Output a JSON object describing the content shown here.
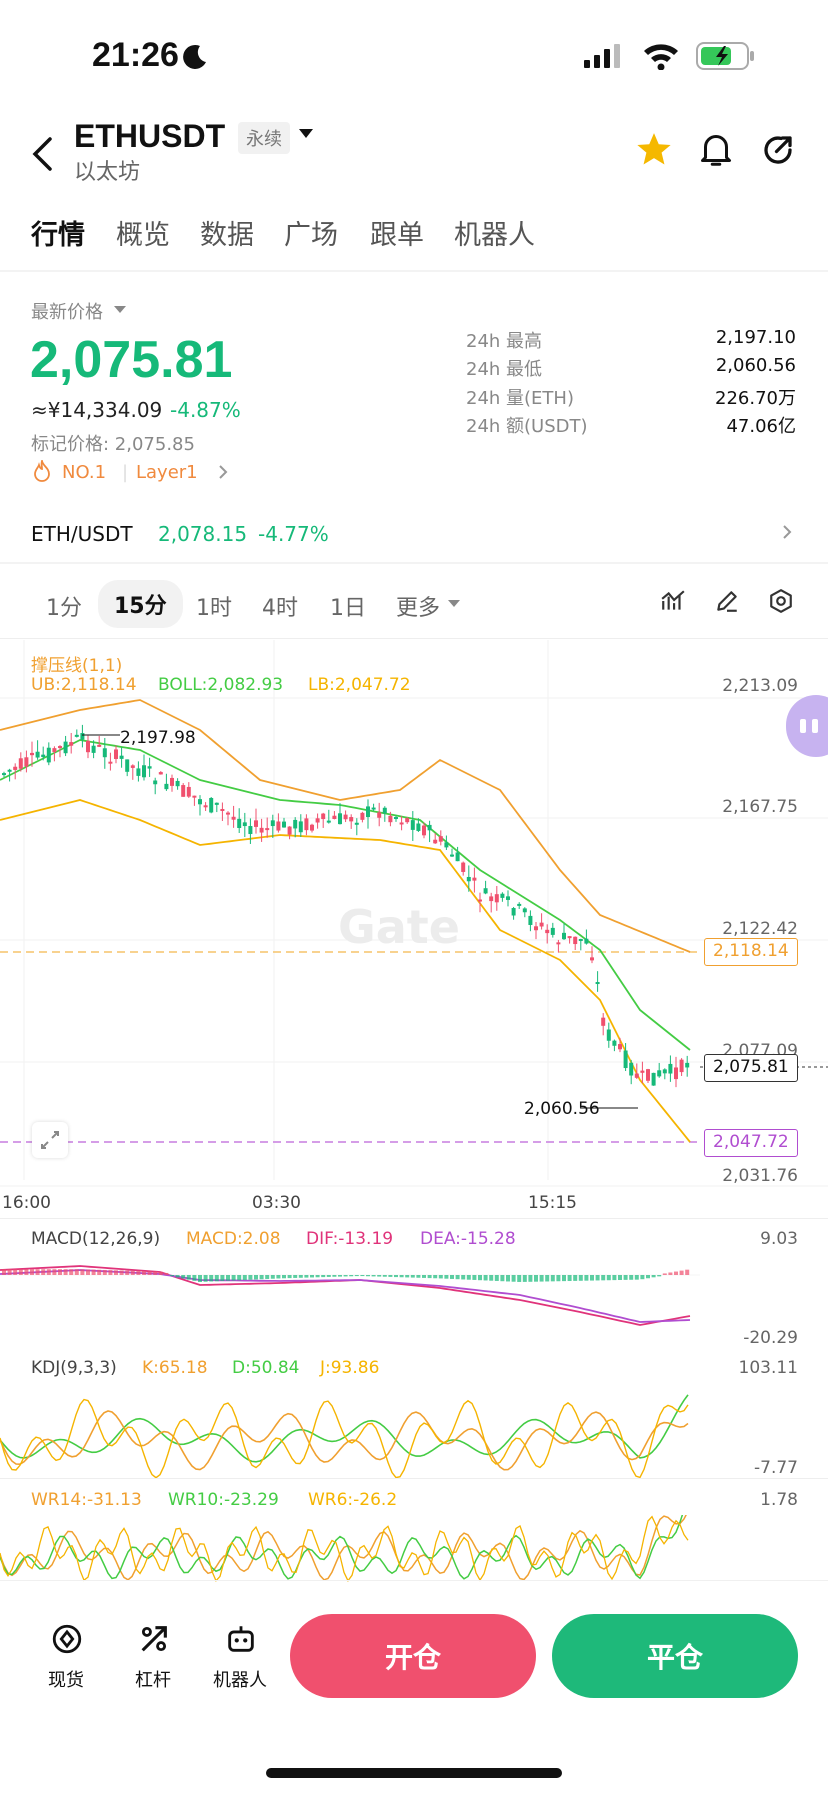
{
  "status_bar": {
    "time": "21:26"
  },
  "header": {
    "symbol": "ETHUSDT",
    "contract_type": "永续",
    "name": "以太坊"
  },
  "tabs": [
    "行情",
    "概览",
    "数据",
    "广场",
    "跟单",
    "机器人"
  ],
  "market": {
    "latest_price_label": "最新价格",
    "price": "2,075.81",
    "cny_price": "≈¥14,334.09",
    "change": "-4.87%",
    "mark_price": "标记价格: 2,075.85",
    "rank_tag": "NO.1",
    "sector_tag": "Layer1",
    "stats": [
      {
        "label": "24h  最高",
        "value": "2,197.10"
      },
      {
        "label": "24h  最低",
        "value": "2,060.56"
      },
      {
        "label": "24h  量(ETH)",
        "value": "226.70万"
      },
      {
        "label": "24h  额(USDT)",
        "value": "47.06亿"
      }
    ],
    "spot_pair": "ETH/USDT",
    "spot_price": "2,078.15",
    "spot_change": "-4.77%"
  },
  "timeframes": [
    "1分",
    "15分",
    "1时",
    "4时",
    "1日",
    "更多"
  ],
  "selected_timeframe": "15分",
  "chart": {
    "indicator_title": "撑压线(1,1)",
    "ub": "UB:2,118.14",
    "boll": "BOLL:2,082.93",
    "lb": "LB:2,047.72",
    "y_ticks": [
      "2,213.09",
      "2,167.75",
      "2,122.42",
      "2,077.09",
      "2,031.76"
    ],
    "x_ticks": [
      "16:00",
      "03:30",
      "15:15"
    ],
    "high_marker": "2,197.98",
    "low_marker": "2,060.56",
    "ub_tag": "2,118.14",
    "price_tag": "2,075.81",
    "lb_tag": "2,047.72",
    "watermark": "Gate",
    "colors": {
      "up": "#f0506e",
      "down": "#16b979",
      "ub": "#f0a030",
      "boll": "#44cc44",
      "lb": "#f5b400"
    }
  },
  "macd": {
    "title": "MACD(12,26,9)",
    "macd": "MACD:2.08",
    "dif": "DIF:-13.19",
    "dea": "DEA:-15.28",
    "max": "9.03",
    "min": "-20.29"
  },
  "kdj": {
    "title": "KDJ(9,3,3)",
    "k": "K:65.18",
    "d": "D:50.84",
    "j": "J:93.86",
    "max": "103.11",
    "min": "-7.77"
  },
  "wr": {
    "wr14": "WR14:-31.13",
    "wr10": "WR10:-23.29",
    "wr6": "WR6:-26.2",
    "max": "1.78"
  },
  "bottom_nav": [
    "现货",
    "杠杆",
    "机器人"
  ],
  "actions": {
    "open": "开仓",
    "close": "平仓"
  }
}
